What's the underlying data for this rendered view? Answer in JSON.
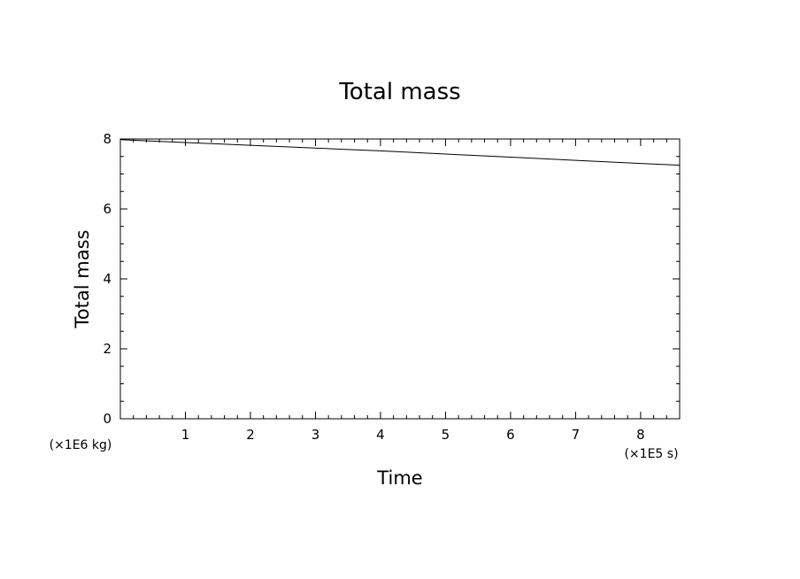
{
  "chart_data": {
    "type": "line",
    "title": "Total mass",
    "xlabel": "Time",
    "ylabel": "Total mass",
    "x_unit": "(×1E5 s)",
    "y_unit": "(×1E6 kg)",
    "xlim": [
      0,
      8.6
    ],
    "ylim": [
      0,
      8
    ],
    "xticks": [
      1,
      2,
      3,
      4,
      5,
      6,
      7,
      8
    ],
    "yticks": [
      0,
      2,
      4,
      6,
      8
    ],
    "grid": false,
    "series": [
      {
        "x": [
          0,
          1,
          2,
          3,
          4,
          5,
          6,
          7,
          8,
          8.6
        ],
        "y": [
          7.98,
          7.9,
          7.82,
          7.74,
          7.66,
          7.57,
          7.48,
          7.39,
          7.3,
          7.25
        ]
      }
    ]
  }
}
